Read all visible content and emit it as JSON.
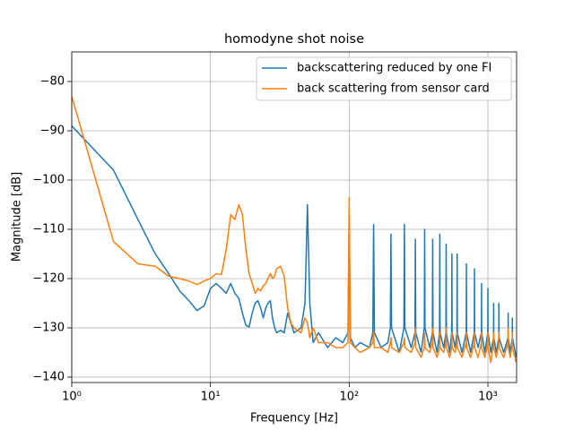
{
  "chart_data": {
    "type": "line",
    "title": "homodyne shot noise",
    "x_label": "Frequency [Hz]",
    "y_label": "Magnitude [dB]",
    "x_scale": "log",
    "grid": true,
    "legend_position": "upper-right",
    "xlim": [
      1,
      1610
    ],
    "ylim": [
      -141.1,
      -74
    ],
    "xticks": [
      {
        "value": 1,
        "label": "10⁰"
      },
      {
        "value": 10,
        "label": "10¹"
      },
      {
        "value": 100,
        "label": "10²"
      },
      {
        "value": 1000,
        "label": "10³"
      }
    ],
    "yticks": [
      {
        "value": -140,
        "label": "−140"
      },
      {
        "value": -130,
        "label": "−130"
      },
      {
        "value": -120,
        "label": "−120"
      },
      {
        "value": -110,
        "label": "−110"
      },
      {
        "value": -100,
        "label": "−100"
      },
      {
        "value": -90,
        "label": "−90"
      },
      {
        "value": -80,
        "label": "−80"
      }
    ],
    "x": [
      1,
      2,
      3,
      4,
      5,
      6,
      7,
      8,
      9,
      10,
      11,
      12,
      13,
      14,
      15,
      16,
      17,
      18,
      19,
      20,
      21,
      22,
      23,
      24,
      25,
      26,
      27,
      28,
      29,
      30,
      32,
      34,
      36,
      38,
      40,
      45,
      48,
      50,
      52,
      55,
      60,
      70,
      80,
      90,
      98,
      100,
      102,
      110,
      120,
      140,
      148,
      150,
      152,
      170,
      190,
      198,
      200,
      202,
      230,
      248,
      250,
      252,
      280,
      298,
      300,
      302,
      330,
      348,
      350,
      352,
      380,
      398,
      400,
      402,
      430,
      448,
      450,
      452,
      480,
      498,
      500,
      502,
      530,
      548,
      550,
      552,
      580,
      598,
      600,
      602,
      650,
      698,
      700,
      702,
      750,
      798,
      800,
      802,
      850,
      898,
      900,
      902,
      950,
      998,
      1000,
      1002,
      1050,
      1098,
      1100,
      1102,
      1150,
      1198,
      1200,
      1202,
      1300,
      1398,
      1400,
      1402,
      1450,
      1498,
      1500,
      1502,
      1600
    ],
    "series": [
      {
        "name": "backscattering reduced by one FI",
        "color": "#1f77b4",
        "values": [
          -89,
          -98,
          -108,
          -115,
          -119,
          -122.5,
          -124.5,
          -126.5,
          -125.5,
          -122,
          -121,
          -122,
          -123,
          -121,
          -123,
          -124,
          -127,
          -129.5,
          -129.8,
          -127,
          -125,
          -124.5,
          -126,
          -128,
          -126,
          -125,
          -124.5,
          -128,
          -130,
          -131,
          -130.5,
          -131,
          -127,
          -129,
          -131,
          -130,
          -125,
          -105,
          -125,
          -133,
          -131,
          -134,
          -132,
          -133,
          -131,
          -107,
          -132,
          -134,
          -133,
          -134,
          -131,
          -109,
          -131,
          -134,
          -133,
          -130,
          -111,
          -130,
          -135,
          -130,
          -109,
          -130,
          -134,
          -131,
          -112,
          -131,
          -135,
          -130,
          -110,
          -130,
          -134,
          -131,
          -112,
          -131,
          -135,
          -131,
          -111,
          -131,
          -134,
          -131,
          -113,
          -131,
          -135,
          -131,
          -115,
          -131,
          -134,
          -131,
          -115,
          -131,
          -135,
          -131,
          -117,
          -131,
          -135,
          -131,
          -118,
          -131,
          -134,
          -131,
          -121,
          -131,
          -135,
          -131,
          -122,
          -131,
          -135,
          -132,
          -125,
          -132,
          -135,
          -132,
          -125,
          -132,
          -135,
          -132,
          -127,
          -132,
          -135,
          -132,
          -128,
          -132,
          -136
        ]
      },
      {
        "name": "back scattering from sensor card",
        "color": "#ff7f0e",
        "values": [
          -83,
          -112.5,
          -117,
          -117.5,
          -119.5,
          -120,
          -120.5,
          -121.2,
          -120.5,
          -120,
          -119,
          -119.2,
          -114,
          -107,
          -108,
          -105,
          -107,
          -114,
          -119,
          -121,
          -123,
          -122,
          -122.5,
          -121.5,
          -121,
          -120,
          -119,
          -120,
          -119.5,
          -118,
          -117.5,
          -119.5,
          -126,
          -129,
          -130,
          -131,
          -128,
          -129,
          -132,
          -130,
          -133,
          -133,
          -134,
          -134,
          -133,
          -103.5,
          -133,
          -134,
          -135,
          -134,
          -133,
          -131,
          -134,
          -134,
          -135,
          -133,
          -132,
          -134,
          -135,
          -133,
          -132,
          -134,
          -135,
          -133,
          -130,
          -134,
          -136,
          -134,
          -131,
          -134,
          -135,
          -133,
          -130,
          -134,
          -136,
          -134,
          -131,
          -134,
          -135,
          -133,
          -130,
          -134,
          -136,
          -134,
          -131,
          -134,
          -135,
          -133,
          -131,
          -134,
          -136,
          -133,
          -131,
          -134,
          -136,
          -133,
          -131,
          -134,
          -136,
          -133,
          -131,
          -134,
          -136,
          -133,
          -131,
          -134,
          -137,
          -133,
          -131,
          -134,
          -136,
          -133,
          -131,
          -134,
          -136,
          -133,
          -130,
          -134,
          -136,
          -133,
          -131,
          -134,
          -137
        ]
      }
    ]
  }
}
